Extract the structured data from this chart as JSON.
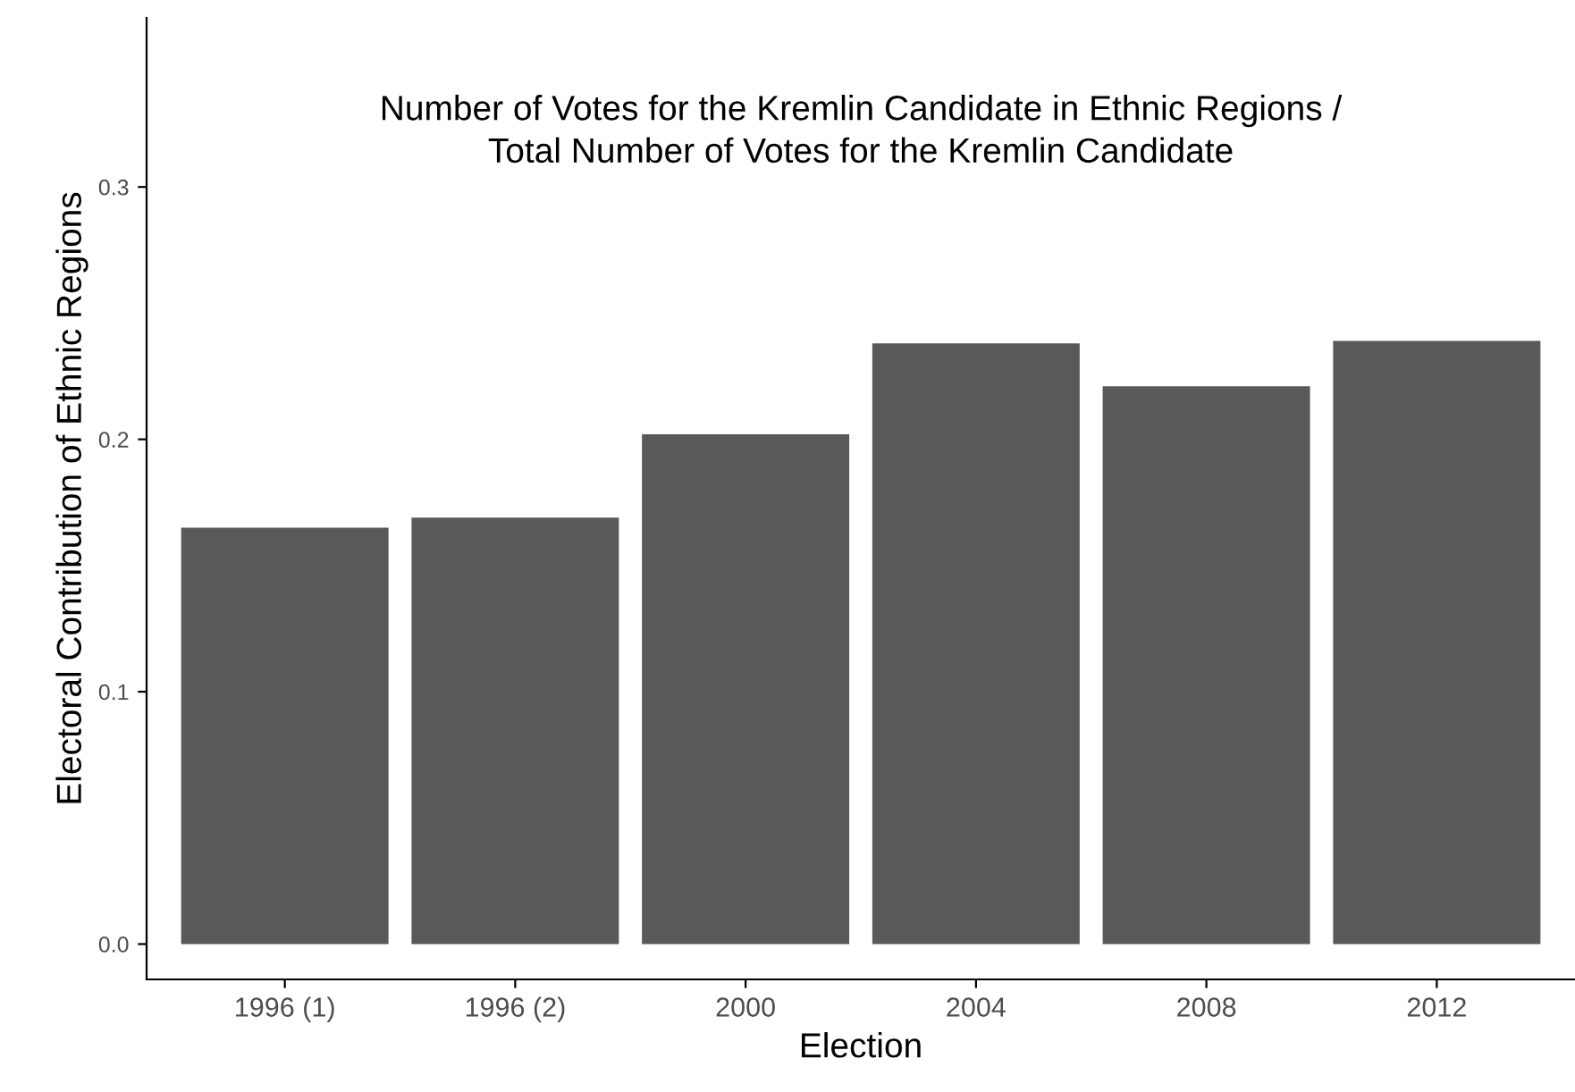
{
  "chart_data": {
    "type": "bar",
    "title": "Number of Votes for the Kremlin Candidate in Ethnic Regions /\nTotal Number of Votes for the Kremlin Candidate",
    "xlabel": "Election",
    "ylabel": "Electoral Contribution of Ethnic Regions",
    "categories": [
      "1996 (1)",
      "1996 (2)",
      "2000",
      "2004",
      "2008",
      "2012"
    ],
    "values": [
      0.165,
      0.169,
      0.202,
      0.238,
      0.221,
      0.239
    ],
    "color": "#595959",
    "ylim": [
      -0.014,
      0.367
    ],
    "yticks": [
      {
        "value": 0,
        "label": "0.0"
      },
      0.1,
      0.2,
      0.3
    ],
    "grid": false
  }
}
